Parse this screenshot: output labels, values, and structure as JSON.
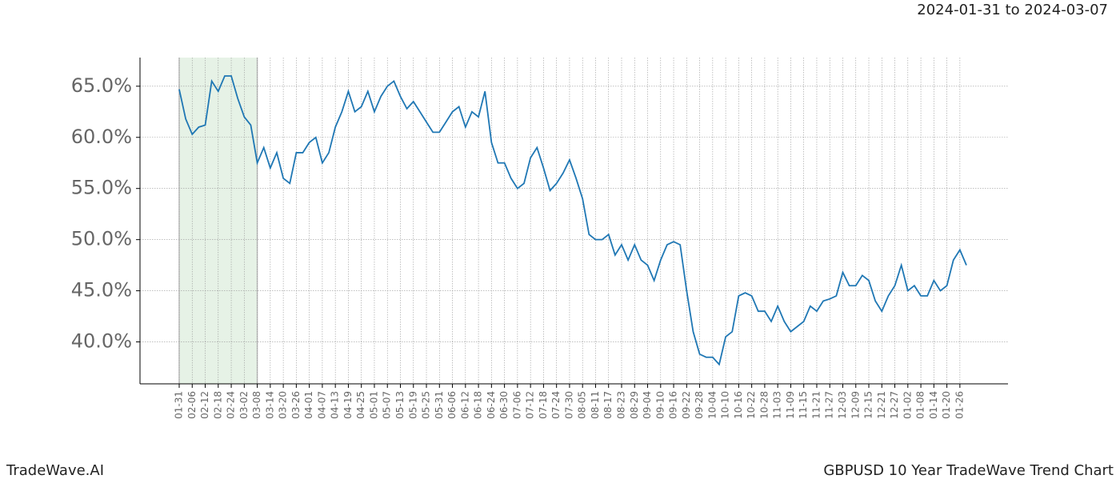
{
  "chart_data": {
    "type": "line",
    "subtitle": "2024-01-31 to 2024-03-07",
    "footer_left": "TradeWave.AI",
    "footer_right": "GBPUSD 10 Year TradeWave Trend Chart",
    "categories": [
      "01-31",
      null,
      "02-06",
      null,
      "02-12",
      null,
      "02-18",
      null,
      "02-24",
      null,
      "03-02",
      null,
      "03-08",
      null,
      "03-14",
      null,
      "03-20",
      null,
      "03-26",
      null,
      "04-01",
      null,
      "04-07",
      null,
      "04-13",
      null,
      "04-19",
      null,
      "04-25",
      null,
      "05-01",
      null,
      "05-07",
      null,
      "05-13",
      null,
      "05-19",
      null,
      "05-25",
      null,
      "05-31",
      null,
      "06-06",
      null,
      "06-12",
      null,
      "06-18",
      null,
      "06-24",
      null,
      "06-30",
      null,
      "07-06",
      null,
      "07-12",
      null,
      "07-18",
      null,
      "07-24",
      null,
      "07-30",
      null,
      "08-05",
      null,
      "08-11",
      null,
      "08-17",
      null,
      "08-23",
      null,
      "08-29",
      null,
      "09-04",
      null,
      "09-10",
      null,
      "09-16",
      null,
      "09-22",
      null,
      "09-28",
      null,
      "10-04",
      null,
      "10-10",
      null,
      "10-16",
      null,
      "10-22",
      null,
      "10-28",
      null,
      "11-03",
      null,
      "11-09",
      null,
      "11-15",
      null,
      "11-21",
      null,
      "11-27",
      null,
      "12-03",
      null,
      "12-09",
      null,
      "12-15",
      null,
      "12-21",
      null,
      "12-27",
      null,
      "01-02",
      null,
      "01-08",
      null,
      "01-14",
      null,
      "01-20",
      null,
      "01-26",
      null
    ],
    "series": [
      {
        "color": "#1f77b4",
        "values": [
          64.7,
          61.8,
          60.3,
          61.0,
          61.2,
          65.5,
          64.5,
          66.0,
          66.0,
          63.8,
          62.0,
          61.2,
          57.5,
          59.0,
          57.0,
          58.5,
          56.0,
          55.5,
          58.5,
          58.5,
          59.5,
          60.0,
          57.5,
          58.5,
          61.0,
          62.5,
          64.5,
          62.5,
          63.0,
          64.5,
          62.5,
          64.0,
          65.0,
          65.5,
          64.0,
          62.8,
          63.5,
          62.5,
          61.5,
          60.5,
          60.5,
          61.5,
          62.5,
          63.0,
          61.0,
          62.5,
          62.0,
          64.5,
          59.5,
          57.5,
          57.5,
          56.0,
          55.0,
          55.5,
          58.0,
          59.0,
          57.0,
          54.8,
          55.5,
          56.5,
          57.8,
          56.0,
          54.0,
          50.5,
          50.0,
          50.0,
          50.5,
          48.5,
          49.5,
          48.0,
          49.5,
          48.0,
          47.5,
          46.0,
          48.0,
          49.5,
          49.8,
          49.5,
          45.0,
          41.0,
          38.8,
          38.5,
          38.5,
          37.8,
          40.5,
          41.0,
          44.5,
          44.8,
          44.5,
          43.0,
          43.0,
          42.0,
          43.5,
          42.0,
          41.0,
          41.5,
          42.0,
          43.5,
          43.0,
          44.0,
          44.2,
          44.5,
          46.8,
          45.5,
          45.5,
          46.5,
          46.0,
          44.0,
          43.0,
          44.5,
          45.5,
          47.5,
          45.0,
          45.5,
          44.5,
          44.5,
          46.0,
          45.0,
          45.5,
          48.0,
          49.0,
          47.5
        ]
      }
    ],
    "shaded": {
      "from": "01-31",
      "to": "03-08",
      "color": "#e6f2e6"
    },
    "ylim": [
      35.9,
      67.8
    ],
    "yticks": [
      {
        "value": 40,
        "label": "40.0%"
      },
      {
        "value": 45,
        "label": "45.0%"
      },
      {
        "value": 50,
        "label": "50.0%"
      },
      {
        "value": 55,
        "label": "55.0%"
      },
      {
        "value": 60,
        "label": "60.0%"
      },
      {
        "value": 65,
        "label": "65.0%"
      }
    ],
    "grid": true
  }
}
